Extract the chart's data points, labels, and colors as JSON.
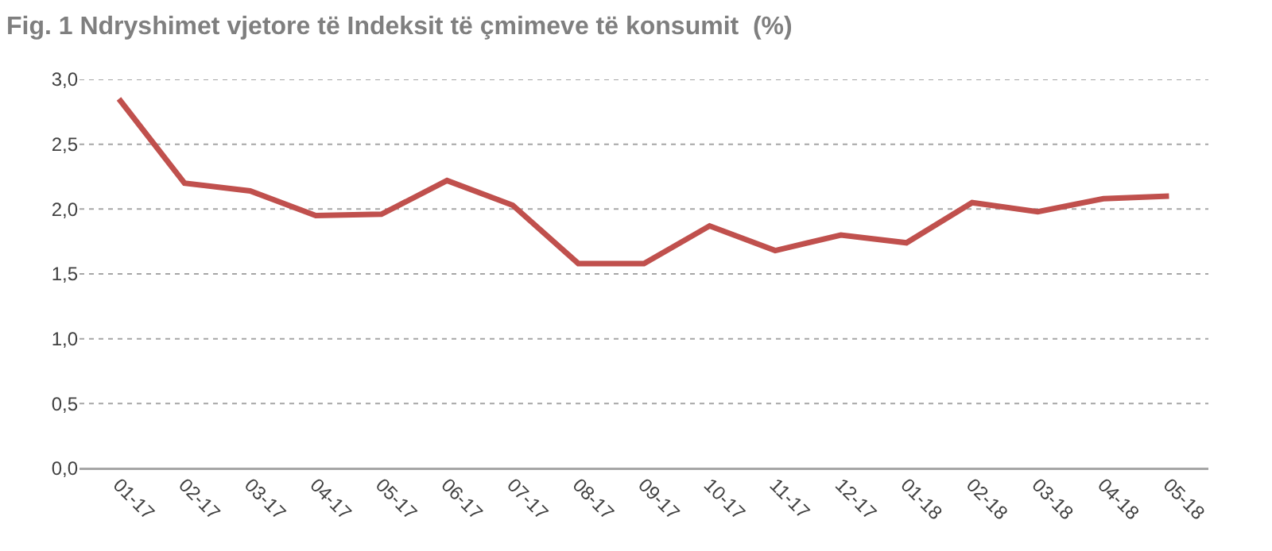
{
  "chart_data": {
    "type": "line",
    "title": "Fig. 1 Ndryshimet vjetore të Indeksit të çmimeve të konsumit  (%)",
    "categories": [
      "01-17",
      "02-17",
      "03-17",
      "04-17",
      "05-17",
      "06-17",
      "07-17",
      "08-17",
      "09-17",
      "10-17",
      "11-17",
      "12-17",
      "01-18",
      "02-18",
      "03-18",
      "04-18",
      "05-18"
    ],
    "series": [
      {
        "color": "#c0504d",
        "values": [
          2.85,
          2.2,
          2.14,
          1.95,
          1.96,
          2.22,
          2.03,
          1.58,
          1.58,
          1.87,
          1.68,
          1.8,
          1.74,
          2.05,
          1.98,
          2.08,
          2.1
        ]
      }
    ],
    "ylim": [
      0,
      3
    ],
    "yticks": [
      {
        "value": 0,
        "label": "0,0"
      },
      {
        "value": 0.5,
        "label": "0,5"
      },
      {
        "value": 1,
        "label": "1,0"
      },
      {
        "value": 1.5,
        "label": "1,5"
      },
      {
        "value": 2,
        "label": "2,0"
      },
      {
        "value": 2.5,
        "label": "2,5"
      },
      {
        "value": 3,
        "label": "3,0"
      }
    ],
    "grid": "y",
    "marker": "none",
    "line_style": "solid"
  }
}
